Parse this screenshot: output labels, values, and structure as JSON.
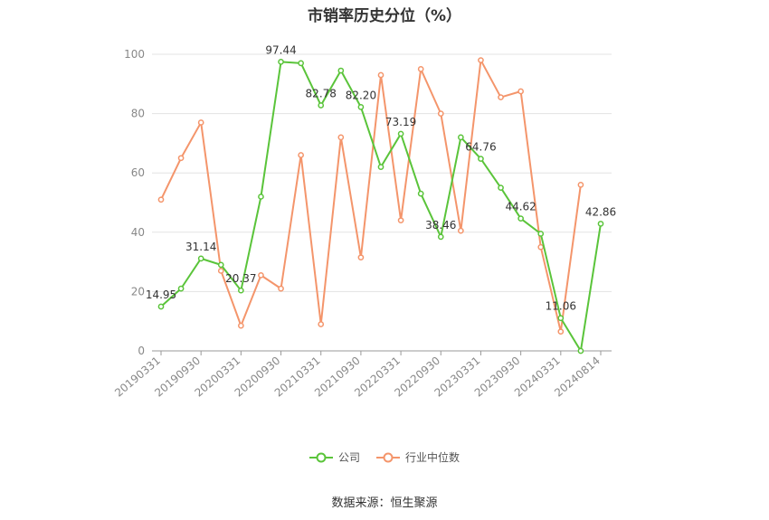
{
  "chart_data": {
    "type": "line",
    "title": "市销率历史分位（%）",
    "source": "数据来源：恒生聚源",
    "ylim": [
      0,
      100
    ],
    "yticks": [
      0,
      20,
      40,
      60,
      80,
      100
    ],
    "x": [
      "20190331",
      "20190630",
      "20190930",
      "20191231",
      "20200331",
      "20200630",
      "20200930",
      "20201231",
      "20210331",
      "20210630",
      "20210930",
      "20211231",
      "20220331",
      "20220630",
      "20220930",
      "20221231",
      "20230331",
      "20230630",
      "20230930",
      "20231231",
      "20240331",
      "20240630",
      "20240814"
    ],
    "xtick_labels": [
      "20190331",
      "20190930",
      "20200331",
      "20200930",
      "20210331",
      "20210930",
      "20220331",
      "20220930",
      "20230331",
      "20230930",
      "20240331",
      "20240814"
    ],
    "xtick_indices": [
      0,
      2,
      4,
      6,
      8,
      10,
      12,
      14,
      16,
      18,
      20,
      22
    ],
    "grid": true,
    "legend_position": "bottom",
    "series": [
      {
        "name": "公司",
        "color": "#5ac43a",
        "values": [
          14.95,
          21.0,
          31.14,
          29.0,
          20.37,
          52.0,
          97.44,
          97.0,
          82.78,
          94.5,
          82.2,
          62.0,
          73.19,
          53.0,
          38.46,
          72.0,
          64.76,
          55.0,
          44.62,
          39.5,
          11.06,
          0.0,
          42.86
        ],
        "labels": {
          "0": "14.95",
          "2": "31.14",
          "4": "20.37",
          "6": "97.44",
          "8": "82.78",
          "10": "82.20",
          "12": "73.19",
          "14": "38.46",
          "16": "64.76",
          "18": "44.62",
          "20": "11.06",
          "22": "42.86"
        }
      },
      {
        "name": "行业中位数",
        "color": "#f4956b",
        "values": [
          51.0,
          65.0,
          77.0,
          27.0,
          8.5,
          25.5,
          21.0,
          66.0,
          9.0,
          72.0,
          31.5,
          93.0,
          44.0,
          95.0,
          80.0,
          40.5,
          98.0,
          85.5,
          87.5,
          35.0,
          6.5,
          56.0,
          null
        ]
      }
    ]
  }
}
